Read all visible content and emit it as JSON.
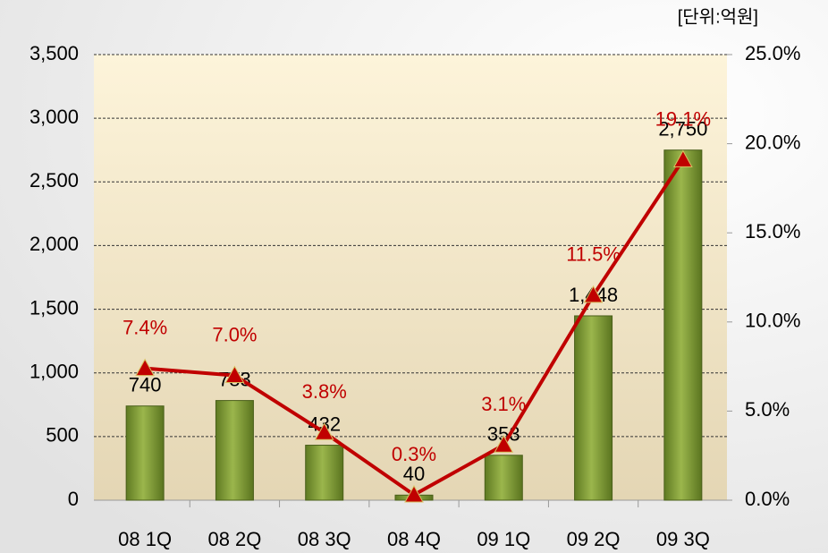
{
  "chart_data": {
    "type": "bar",
    "annotation": "[단위:억원]",
    "categories": [
      "08 1Q",
      "08 2Q",
      "08 3Q",
      "08 4Q",
      "09 1Q",
      "09 2Q",
      "09 3Q"
    ],
    "series": [
      {
        "type": "bar",
        "color": "#7a9a35",
        "values": [
          740,
          783,
          432,
          40,
          353,
          1448,
          2750
        ],
        "value_labels": [
          "740",
          "783",
          "432",
          "40",
          "353",
          "1,448",
          "2,750"
        ]
      },
      {
        "type": "line",
        "axis": "y2",
        "color": "#c00000",
        "values": [
          7.4,
          7.0,
          3.8,
          0.3,
          3.1,
          11.5,
          19.1
        ],
        "value_labels": [
          "7.4%",
          "7.0%",
          "3.8%",
          "0.3%",
          "3.1%",
          "11.5%",
          "19.1%"
        ]
      }
    ],
    "ylim": [
      0,
      3500
    ],
    "yticks": [
      0,
      500,
      {
        "value": 1000,
        "label": "1,000"
      },
      {
        "value": 1500,
        "label": "1,500"
      },
      {
        "value": 2000,
        "label": "2,000"
      },
      {
        "value": 2500,
        "label": "2,500"
      },
      {
        "value": 3000,
        "label": "3,000"
      },
      {
        "value": 3500,
        "label": "3,500"
      }
    ],
    "y2lim": [
      0,
      25
    ],
    "y2ticks": [
      {
        "value": 0,
        "label": "0.0%"
      },
      {
        "value": 5,
        "label": "5.0%"
      },
      {
        "value": 10,
        "label": "10.0%"
      },
      {
        "value": 15,
        "label": "15.0%"
      },
      {
        "value": 20,
        "label": "20.0%"
      },
      {
        "value": 25,
        "label": "25.0%"
      }
    ],
    "grid": true
  }
}
